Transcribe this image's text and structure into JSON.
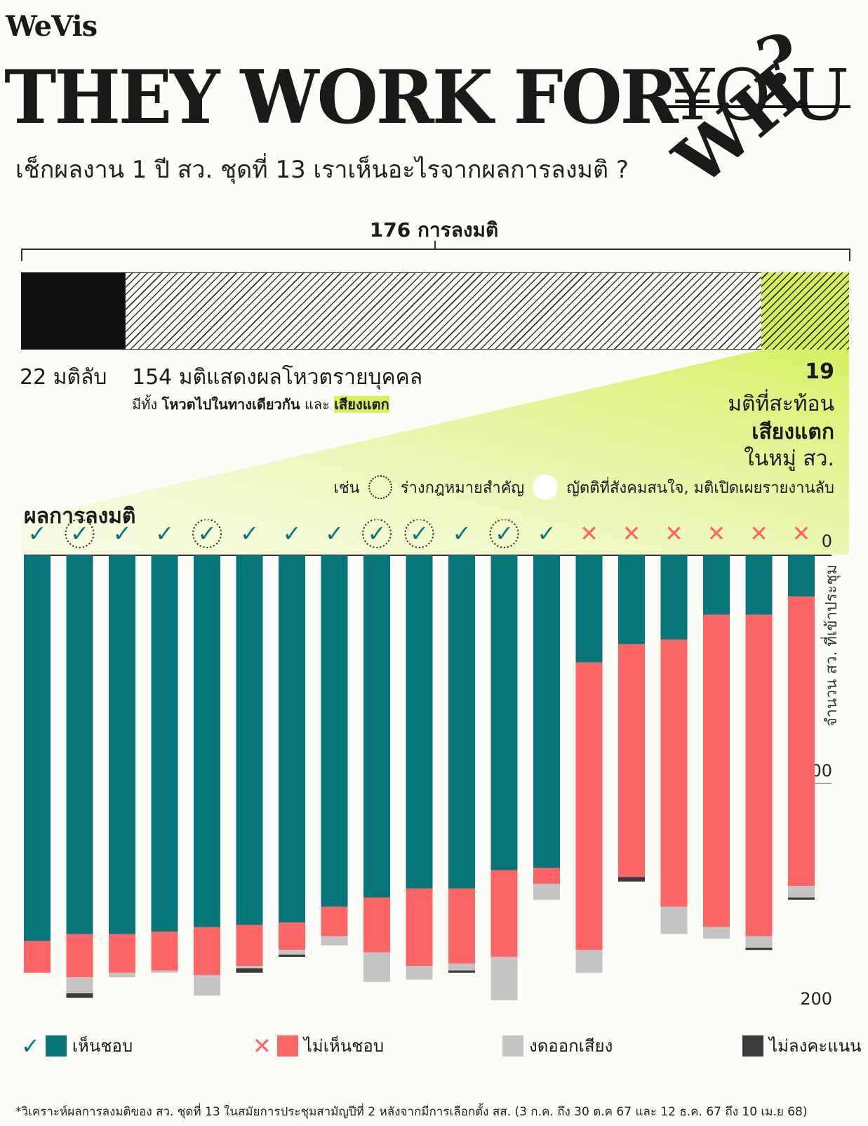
{
  "brand": "WeVis",
  "title": "THEY WORK FOR",
  "title_struck": "¥O U",
  "title_question": "?",
  "title_overlay": "WH",
  "subtitle": "เช็กผลงาน 1 ปี สว. ชุดที่ 13 เราเห็นอะไรจากผลการลงมติ ?",
  "total_label": "176 การลงมติ",
  "breakdown": {
    "passed_label": "22 มติลับ",
    "individual_label": "154 มติแสดงผลโหวตรายบุคคล",
    "individual_sub_prefix": "มีทั้ง",
    "individual_sub_bold": "โหวตไปในทางเดียวกัน",
    "individual_sub_mid": "และ",
    "individual_sub_hl": "เสียงแตก",
    "split_num": "19",
    "split_line1": "มติที่สะท้อน",
    "split_line2": "เสียงแตก",
    "split_line3": "ในหมู่ สว.",
    "example_prefix": "เช่น",
    "example_dotted": "ร่างกฎหมายสำคัญ",
    "example_white": "ญัตติที่สังคมสนใจ, มติเปิดเผยรายงานลับ"
  },
  "chart_heading": "ผลการลงมติ",
  "colors": {
    "agree": "#06767a",
    "disagree": "#fe6565",
    "abstain": "#c4c4c4",
    "novote": "#3b3b3b",
    "accent": "#d4f05a"
  },
  "legend": {
    "agree": "เห็นชอบ",
    "disagree": "ไม่เห็นชอบ",
    "abstain": "งดออกเสียง",
    "novote": "ไม่ลงคะแนน"
  },
  "footnote": "*วิเคราะห์ผลการลงมติของ สว. ชุดที่ 13 ในสมัยการประชุมสามัญปีที่ 2 หลังจากมีการเลือกตั้ง สส. (3 ก.ค. ถึง 30 ต.ค 67 และ 12 ธ.ค. 67 ถึง 10 เม.ย 68)",
  "chart_data": {
    "type": "bar",
    "stacked": true,
    "orientation": "vertical-downward",
    "ylabel": "จำนวน สว. ที่เข้าประชุม",
    "yticks": [
      "0",
      "100",
      "200"
    ],
    "ylim": [
      0,
      200
    ],
    "series_names": [
      "เห็นชอบ",
      "ไม่เห็นชอบ",
      "งดออกเสียง",
      "ไม่ลงคะแนน"
    ],
    "bars": [
      {
        "result": "agree",
        "marked": false,
        "agree": 169,
        "disagree": 14,
        "abstain": 0,
        "novote": 0
      },
      {
        "result": "agree",
        "marked": true,
        "agree": 166,
        "disagree": 19,
        "abstain": 7,
        "novote": 2
      },
      {
        "result": "agree",
        "marked": false,
        "agree": 166,
        "disagree": 17,
        "abstain": 2,
        "novote": 0
      },
      {
        "result": "agree",
        "marked": false,
        "agree": 165,
        "disagree": 17,
        "abstain": 1,
        "novote": 0
      },
      {
        "result": "agree",
        "marked": true,
        "agree": 163,
        "disagree": 21,
        "abstain": 9,
        "novote": 0
      },
      {
        "result": "agree",
        "marked": false,
        "agree": 162,
        "disagree": 18,
        "abstain": 1,
        "novote": 2
      },
      {
        "result": "agree",
        "marked": false,
        "agree": 161,
        "disagree": 12,
        "abstain": 2,
        "novote": 1
      },
      {
        "result": "agree",
        "marked": false,
        "agree": 154,
        "disagree": 13,
        "abstain": 4,
        "novote": 0
      },
      {
        "result": "agree",
        "marked": true,
        "agree": 150,
        "disagree": 24,
        "abstain": 13,
        "novote": 0
      },
      {
        "result": "agree",
        "marked": true,
        "agree": 146,
        "disagree": 34,
        "abstain": 6,
        "novote": 0
      },
      {
        "result": "agree",
        "marked": false,
        "agree": 146,
        "disagree": 33,
        "abstain": 3,
        "novote": 1
      },
      {
        "result": "agree",
        "marked": true,
        "agree": 138,
        "disagree": 38,
        "abstain": 19,
        "novote": 0
      },
      {
        "result": "agree",
        "marked": false,
        "agree": 137,
        "disagree": 7,
        "abstain": 7,
        "novote": 0
      },
      {
        "result": "disagree",
        "marked": false,
        "agree": 47,
        "disagree": 126,
        "abstain": 10,
        "novote": 0
      },
      {
        "result": "disagree",
        "marked": false,
        "agree": 39,
        "disagree": 102,
        "abstain": 0,
        "novote": 2
      },
      {
        "result": "disagree",
        "marked": false,
        "agree": 37,
        "disagree": 117,
        "abstain": 12,
        "novote": 0
      },
      {
        "result": "disagree",
        "marked": false,
        "agree": 26,
        "disagree": 137,
        "abstain": 5,
        "novote": 0
      },
      {
        "result": "disagree",
        "marked": false,
        "agree": 26,
        "disagree": 141,
        "abstain": 5,
        "novote": 1
      },
      {
        "result": "disagree",
        "marked": false,
        "agree": 18,
        "disagree": 127,
        "abstain": 5,
        "novote": 1
      }
    ]
  }
}
